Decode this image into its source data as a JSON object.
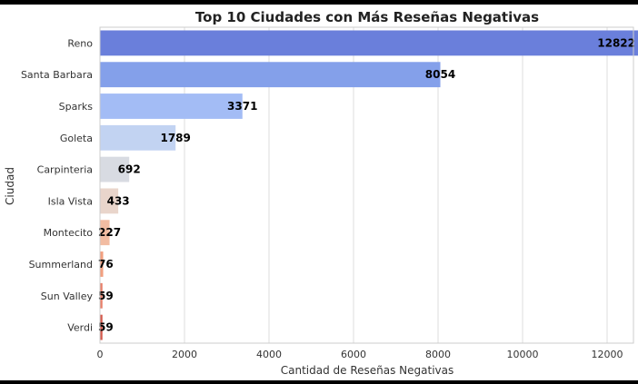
{
  "chart_data": {
    "type": "bar",
    "orientation": "horizontal",
    "title": "Top 10 Ciudades con Más Reseñas Negativas",
    "xlabel": "Cantidad de Reseñas Negativas",
    "ylabel": "Ciudad",
    "categories": [
      "Reno",
      "Santa Barbara",
      "Sparks",
      "Goleta",
      "Carpinteria",
      "Isla Vista",
      "Montecito",
      "Summerland",
      "Sun Valley",
      "Verdi"
    ],
    "values": [
      12822,
      8054,
      3371,
      1789,
      692,
      433,
      227,
      76,
      59,
      59
    ],
    "value_labels": [
      "12822",
      "8054",
      "3371",
      "1789",
      "692",
      "433",
      "227",
      "76",
      "59",
      "59"
    ],
    "xlim": [
      0,
      13500
    ],
    "xticks": [
      0,
      2000,
      4000,
      6000,
      8000,
      10000,
      12000
    ],
    "xtick_labels": [
      "0",
      "2000",
      "4000",
      "6000",
      "8000",
      "10000",
      "12000"
    ],
    "grid": "vertical",
    "bar_colors": [
      "#6a7fdb",
      "#84a0ea",
      "#a3bcf5",
      "#c2d3f2",
      "#d8dbe2",
      "#e9d5cb",
      "#f2bca2",
      "#f29f7f",
      "#e8806a",
      "#d55a4d"
    ]
  }
}
